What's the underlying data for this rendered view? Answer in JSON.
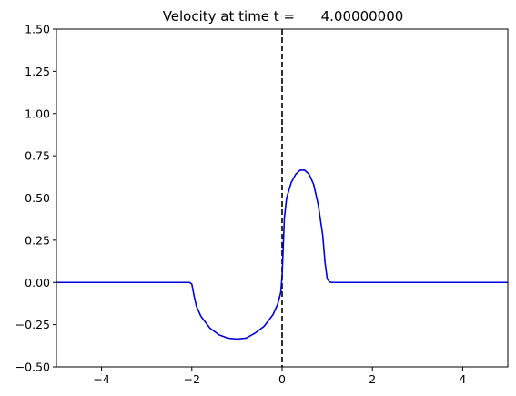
{
  "chart_data": {
    "type": "line",
    "title": "Velocity at time t =      4.00000000",
    "xlabel": "",
    "ylabel": "",
    "xlim": [
      -5,
      5
    ],
    "ylim": [
      -0.5,
      1.5
    ],
    "xticks": [
      -4,
      -2,
      0,
      2,
      4
    ],
    "xtick_labels": [
      "−4",
      "−2",
      "0",
      "2",
      "4"
    ],
    "yticks": [
      -0.5,
      -0.25,
      0,
      0.25,
      0.5,
      0.75,
      1.0,
      1.25,
      1.5
    ],
    "ytick_labels": [
      "−0.50",
      "−0.25",
      "0.00",
      "0.25",
      "0.50",
      "0.75",
      "1.00",
      "1.25",
      "1.50"
    ],
    "grid": false,
    "series": [
      {
        "color": "#0000dd",
        "x": [
          -5,
          -2.05,
          -2.0,
          -1.95,
          -1.9,
          -1.8,
          -1.6,
          -1.4,
          -1.2,
          -1.0,
          -0.8,
          -0.6,
          -0.4,
          -0.2,
          -0.1,
          -0.03,
          0.0,
          0.05,
          0.1,
          0.2,
          0.3,
          0.4,
          0.5,
          0.6,
          0.7,
          0.8,
          0.9,
          0.95,
          1.0,
          1.05,
          1.1,
          5
        ],
        "y": [
          0,
          0,
          -0.01,
          -0.08,
          -0.14,
          -0.2,
          -0.27,
          -0.31,
          -0.33,
          -0.335,
          -0.33,
          -0.3,
          -0.26,
          -0.19,
          -0.13,
          -0.06,
          0.04,
          0.38,
          0.5,
          0.59,
          0.64,
          0.665,
          0.665,
          0.64,
          0.58,
          0.46,
          0.28,
          0.12,
          0.02,
          0.003,
          0,
          0
        ]
      }
    ],
    "vlines": [
      {
        "x": 0,
        "style": "dashed",
        "color": "#000000"
      }
    ]
  }
}
